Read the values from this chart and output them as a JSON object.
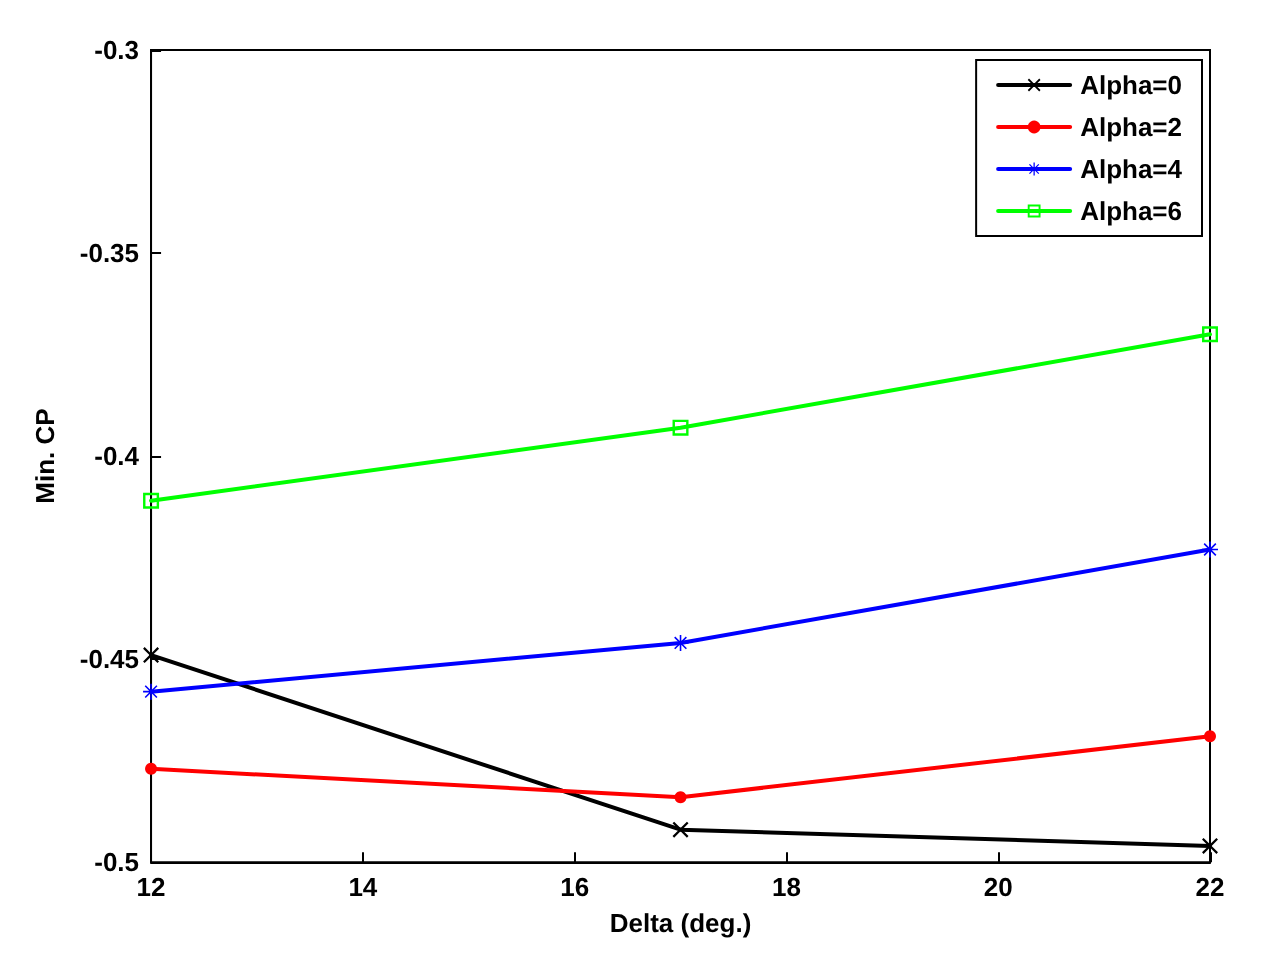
{
  "chart_data": {
    "type": "line",
    "xlabel": "Delta (deg.)",
    "ylabel": "Min. CP",
    "x": [
      12,
      17,
      22
    ],
    "series": [
      {
        "name": "Alpha=0",
        "color": "#000000",
        "marker": "cross",
        "values": [
          -0.449,
          -0.492,
          -0.496
        ]
      },
      {
        "name": "Alpha=2",
        "color": "#ff0000",
        "marker": "circle",
        "values": [
          -0.477,
          -0.484,
          -0.469
        ]
      },
      {
        "name": "Alpha=4",
        "color": "#0000ff",
        "marker": "star",
        "values": [
          -0.458,
          -0.446,
          -0.423
        ]
      },
      {
        "name": "Alpha=6",
        "color": "#00ff00",
        "marker": "square",
        "values": [
          -0.411,
          -0.393,
          -0.37
        ]
      }
    ],
    "xlim": [
      12,
      22
    ],
    "xticks": [
      12,
      14,
      16,
      18,
      20,
      22
    ],
    "ylim": [
      -0.5,
      -0.3
    ],
    "yticks": [
      -0.5,
      -0.45,
      -0.4,
      -0.35,
      -0.3
    ],
    "grid": false,
    "legend": "top right",
    "line_style": "solid"
  }
}
